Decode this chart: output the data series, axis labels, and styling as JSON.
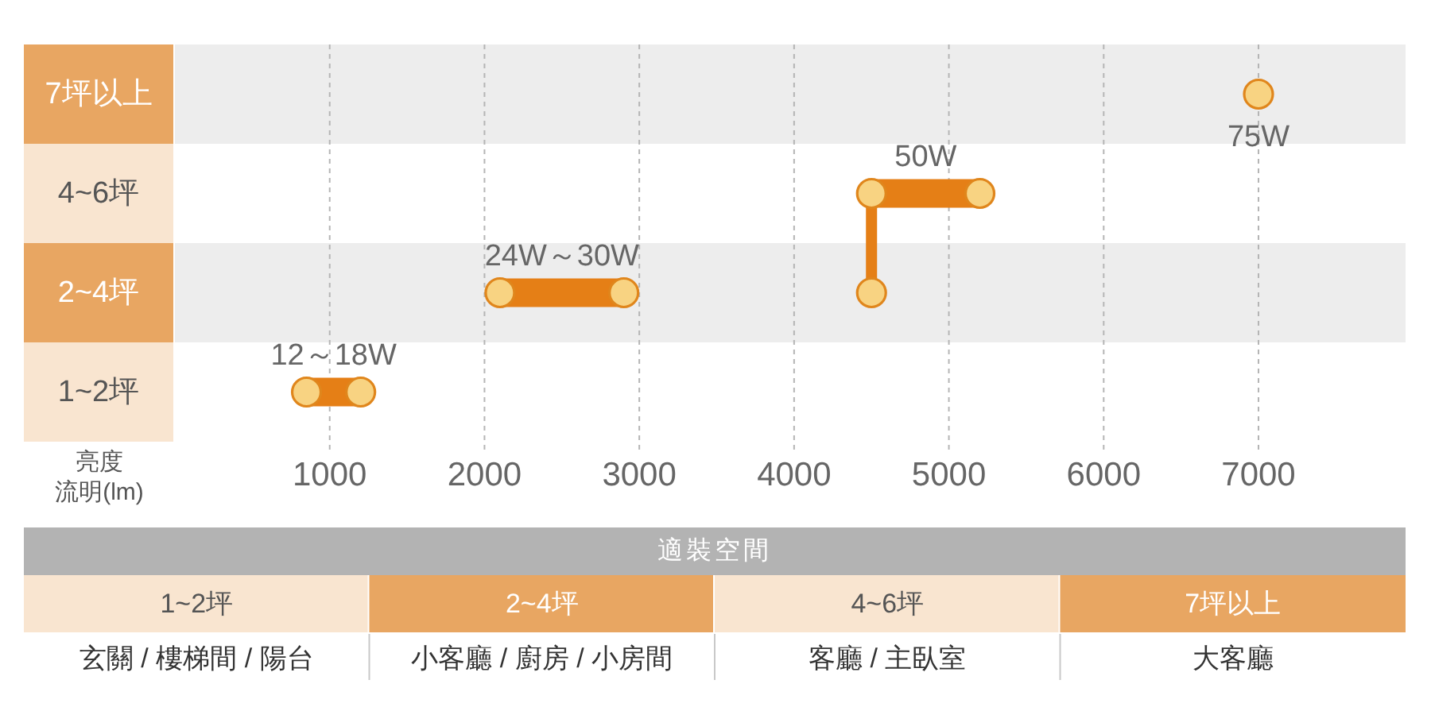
{
  "chart_data": [
    {
      "type": "bar",
      "orientation": "horizontal",
      "categories": [
        "7坪以上",
        "4~6坪",
        "2~4坪",
        "1~2坪"
      ],
      "xlabel": "亮度流明(lm)",
      "xlim": [
        0,
        7950
      ],
      "xticks": [
        1000,
        2000,
        3000,
        4000,
        5000,
        6000,
        7000
      ],
      "grid": "x",
      "series": [
        {
          "type": "bar",
          "color": "#e57f16",
          "values": [
            null,
            700,
            800,
            350
          ],
          "base": [
            null,
            4500,
            2100,
            850
          ]
        },
        {
          "type": "line",
          "color": "#e57f16",
          "x": [
            "2~4坪",
            "4~6坪"
          ],
          "values": [
            4500,
            4500
          ]
        },
        {
          "type": "scatter",
          "color": "#f8d382",
          "marker": "circle",
          "x": [
            "7坪以上",
            "4~6坪",
            "4~6坪",
            "2~4坪",
            "2~4坪",
            "2~4坪",
            "1~2坪",
            "1~2坪"
          ],
          "values": [
            7000,
            4500,
            5200,
            2100,
            2900,
            4500,
            850,
            1200
          ]
        }
      ],
      "annotations": [
        {
          "text": "12～18W",
          "x": 850,
          "y": "1~2坪"
        },
        {
          "text": "24W～30W",
          "x": 2100,
          "y": "2~4坪"
        },
        {
          "text": "50W",
          "x": 4500,
          "y": "4~6坪"
        },
        {
          "text": "75W",
          "x": 7000,
          "y": "7坪以上"
        }
      ]
    },
    {
      "type": "other",
      "title": "適裝空間",
      "categories": [
        "1~2坪",
        "2~4坪",
        "4~6坪",
        "7坪以上"
      ],
      "colors": [
        "#f9e5d0",
        "#e8a662",
        "#f9e5d0",
        "#e8a662"
      ],
      "annotations": [
        "玄關 / 樓梯間 / 陽台",
        "小客廳 / 廚房 / 小房間",
        "客廳 / 主臥室",
        "大客廳"
      ]
    }
  ]
}
